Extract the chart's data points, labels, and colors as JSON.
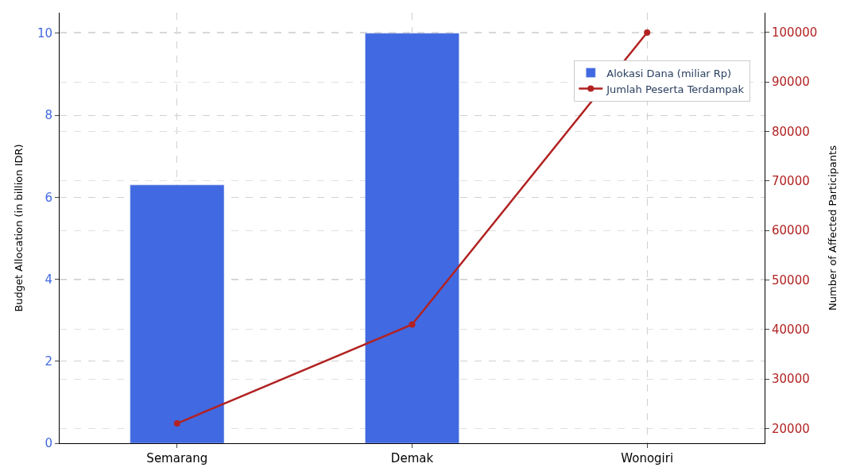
{
  "chart_data": {
    "type": "bar",
    "categories": [
      "Semarang",
      "Demak",
      "Wonogiri"
    ],
    "series": [
      {
        "name": "Alokasi Dana (miliar Rp)",
        "color": "#4169e1",
        "values": [
          6.3,
          10,
          null
        ]
      },
      {
        "name": "Jumlah Peserta Terdampak",
        "type": "line",
        "axis": "y2",
        "color": "#b22222",
        "marker": "circle",
        "values": [
          21000,
          41000,
          100000
        ]
      }
    ],
    "ylabel": "Budget Allocation (in billion IDR)",
    "y2label": "Number of Affected Participants",
    "ylim": [
      0,
      10.5
    ],
    "yticks": [
      0,
      2,
      4,
      6,
      8,
      10
    ],
    "y2lim": [
      17000,
      104000
    ],
    "y2ticks": [
      20000,
      30000,
      40000,
      50000,
      60000,
      70000,
      80000,
      90000,
      100000
    ],
    "grid": true,
    "legend": "top right"
  }
}
